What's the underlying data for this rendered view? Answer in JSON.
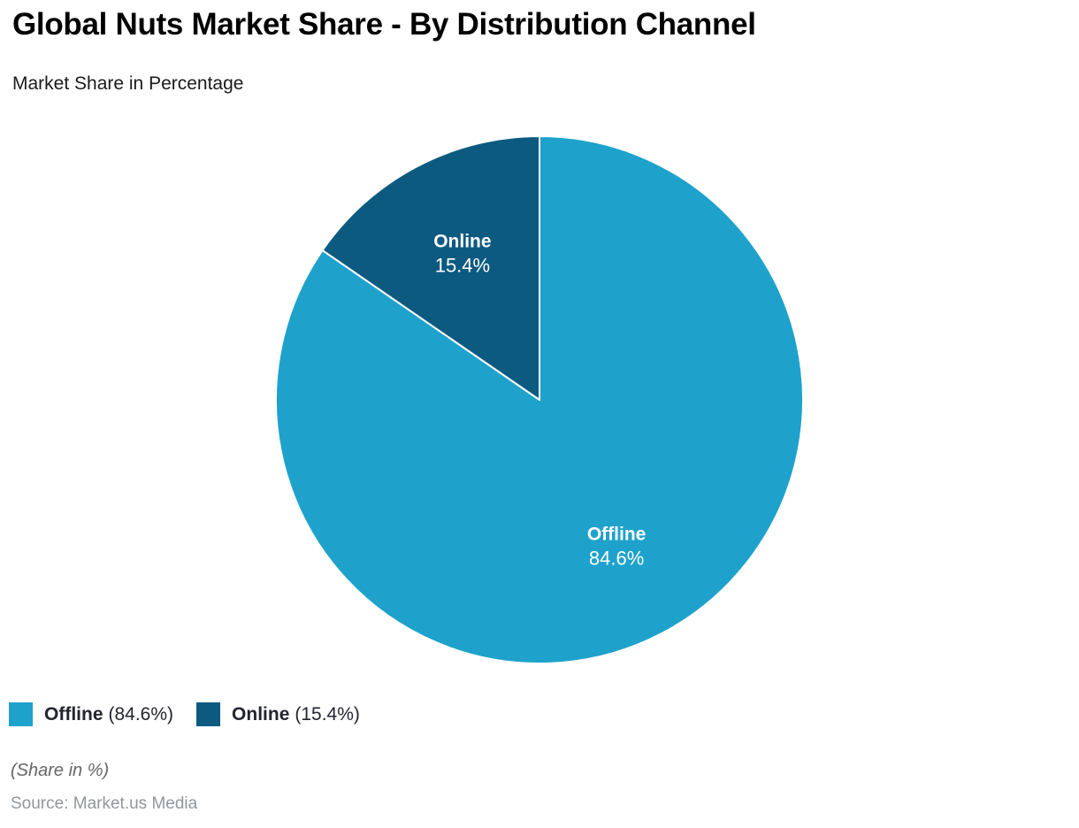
{
  "header": {
    "title": "Global Nuts Market Share - By Distribution Channel",
    "subtitle": "Market Share in Percentage"
  },
  "chart_data": {
    "type": "pie",
    "title": "Global Nuts Market Share - By Distribution Channel",
    "subtitle": "Market Share in Percentage",
    "unit": "%",
    "start_angle": 0,
    "direction": "clockwise",
    "slices": [
      {
        "label": "Offline",
        "value": 84.6,
        "color": "#1EA2CC"
      },
      {
        "label": "Online",
        "value": 15.4,
        "color": "#0D5A80"
      }
    ],
    "slice_border_color": "#FFFFFF",
    "legend_position": "bottom-left"
  },
  "legend": {
    "items": [
      {
        "label": "Offline",
        "detail": "(84.6%)",
        "color": "#1EA2CC"
      },
      {
        "label": "Online",
        "detail": "(15.4%)",
        "color": "#0D5A80"
      }
    ]
  },
  "footer": {
    "note": "(Share in %)",
    "source": "Source: Market.us Media"
  }
}
